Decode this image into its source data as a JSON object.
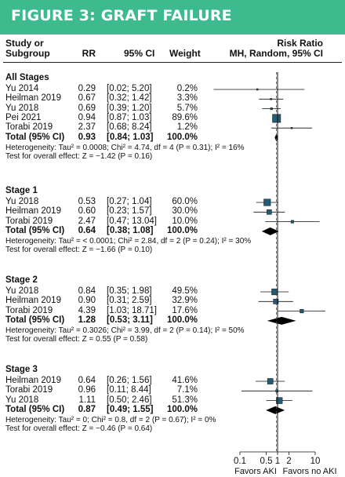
{
  "banner": {
    "title": "FIGURE 3: GRAFT FAILURE"
  },
  "headers": {
    "study_line1": "Study or",
    "study_line2": "Subgroup",
    "rr": "RR",
    "ci": "95% CI",
    "weight": "Weight",
    "effect_line1": "Risk Ratio",
    "effect_line2": "MH, Random, 95% CI"
  },
  "colors": {
    "banner": "#3dbb8f",
    "box": "#1f5c75",
    "line": "#111111"
  },
  "chart_data": {
    "type": "forest",
    "x_scale": "log",
    "xlim": [
      0.05,
      20
    ],
    "x_ticks": [
      0.1,
      0.5,
      1,
      2,
      10
    ],
    "x_tick_labels": [
      "0.1",
      "0.5",
      "1",
      "2",
      "10"
    ],
    "reference_line": 1,
    "favors_left": "Favors AKI",
    "favors_right": "Favors no AKI",
    "groups": [
      {
        "name": "All Stages",
        "studies": [
          {
            "study": "Yu 2014",
            "rr": 0.29,
            "rr_text": "0.29",
            "ci_low": 0.02,
            "ci_high": 5.2,
            "ci_text": "[0.02; 5.20]",
            "weight": 0.2,
            "weight_text": "0.2%"
          },
          {
            "study": "Heilman 2019",
            "rr": 0.67,
            "rr_text": "0.67",
            "ci_low": 0.32,
            "ci_high": 1.42,
            "ci_text": "[0.32; 1.42]",
            "weight": 3.3,
            "weight_text": "3.3%"
          },
          {
            "study": "Yu 2018",
            "rr": 0.69,
            "rr_text": "0.69",
            "ci_low": 0.39,
            "ci_high": 1.2,
            "ci_text": "[0.39; 1.20]",
            "weight": 5.7,
            "weight_text": "5.7%"
          },
          {
            "study": "Pei 2021",
            "rr": 0.94,
            "rr_text": "0.94",
            "ci_low": 0.87,
            "ci_high": 1.03,
            "ci_text": "[0.87; 1.03]",
            "weight": 89.6,
            "weight_text": "89.6%"
          },
          {
            "study": "Torabi 2019",
            "rr": 2.37,
            "rr_text": "2.37",
            "ci_low": 0.68,
            "ci_high": 8.24,
            "ci_text": "[0.68; 8.24]",
            "weight": 1.2,
            "weight_text": "1.2%"
          }
        ],
        "total": {
          "label": "Total (95% CI)",
          "rr": 0.93,
          "rr_text": "0.93",
          "ci_low": 0.84,
          "ci_high": 1.03,
          "ci_text": "[0.84; 1.03]",
          "weight_text": "100.0%"
        },
        "heterogeneity": "Heterogeneity: Tau² = 0.0008; Chi² = 4.74, df = 4 (P = 0.31); I² = 16%",
        "overall_test": "Test for overall effect: Z = −1.42 (P = 0.16)"
      },
      {
        "name": "Stage 1",
        "studies": [
          {
            "study": "Yu 2018",
            "rr": 0.53,
            "rr_text": "0.53",
            "ci_low": 0.27,
            "ci_high": 1.04,
            "ci_text": "[0.27; 1.04]",
            "weight": 60.0,
            "weight_text": "60.0%"
          },
          {
            "study": "Heilman 2019",
            "rr": 0.6,
            "rr_text": "0.60",
            "ci_low": 0.23,
            "ci_high": 1.57,
            "ci_text": "[0.23; 1.57]",
            "weight": 30.0,
            "weight_text": "30.0%"
          },
          {
            "study": "Torabi 2019",
            "rr": 2.47,
            "rr_text": "2.47",
            "ci_low": 0.47,
            "ci_high": 13.04,
            "ci_text": "[0.47; 13.04]",
            "weight": 10.0,
            "weight_text": "10.0%"
          }
        ],
        "total": {
          "label": "Total (95% CI)",
          "rr": 0.64,
          "rr_text": "0.64",
          "ci_low": 0.38,
          "ci_high": 1.08,
          "ci_text": "[0.38; 1.08]",
          "weight_text": "100.0%"
        },
        "heterogeneity": "Heterogeneity: Tau² = < 0.0001; Chi² = 2.84, df = 2 (P = 0.24); I² = 30%",
        "overall_test": "Test for overall effect: Z = −1.66 (P = 0.10)"
      },
      {
        "name": "Stage 2",
        "studies": [
          {
            "study": "Yu 2018",
            "rr": 0.84,
            "rr_text": "0.84",
            "ci_low": 0.35,
            "ci_high": 1.98,
            "ci_text": "[0.35; 1.98]",
            "weight": 49.5,
            "weight_text": "49.5%"
          },
          {
            "study": "Heilman 2019",
            "rr": 0.9,
            "rr_text": "0.90",
            "ci_low": 0.31,
            "ci_high": 2.59,
            "ci_text": "[0.31; 2.59]",
            "weight": 32.9,
            "weight_text": "32.9%"
          },
          {
            "study": "Torabi 2019",
            "rr": 4.39,
            "rr_text": "4.39",
            "ci_low": 1.03,
            "ci_high": 18.71,
            "ci_text": "[1.03; 18.71]",
            "weight": 17.6,
            "weight_text": "17.6%"
          }
        ],
        "total": {
          "label": "Total (95% CI)",
          "rr": 1.28,
          "rr_text": "1.28",
          "ci_low": 0.53,
          "ci_high": 3.11,
          "ci_text": "[0.53; 3.11]",
          "weight_text": "100.0%"
        },
        "heterogeneity": "Heterogeneity: Tau² = 0.3026; Chi² = 3.99, df = 2 (P = 0.14); I² = 50%",
        "overall_test": "Test for overall effect: Z = 0.55 (P = 0.58)"
      },
      {
        "name": "Stage 3",
        "studies": [
          {
            "study": "Heilman 2019",
            "rr": 0.64,
            "rr_text": "0.64",
            "ci_low": 0.26,
            "ci_high": 1.56,
            "ci_text": "[0.26; 1.56]",
            "weight": 41.6,
            "weight_text": "41.6%"
          },
          {
            "study": "Torabi 2019",
            "rr": 0.96,
            "rr_text": "0.96",
            "ci_low": 0.11,
            "ci_high": 8.44,
            "ci_text": "[0.11; 8.44]",
            "weight": 7.1,
            "weight_text": "7.1%"
          },
          {
            "study": "Yu 2018",
            "rr": 1.11,
            "rr_text": "1.11",
            "ci_low": 0.5,
            "ci_high": 2.46,
            "ci_text": "[0.50; 2.46]",
            "weight": 51.3,
            "weight_text": "51.3%"
          }
        ],
        "total": {
          "label": "Total (95% CI)",
          "rr": 0.87,
          "rr_text": "0.87",
          "ci_low": 0.49,
          "ci_high": 1.55,
          "ci_text": "[0.49; 1.55]",
          "weight_text": "100.0%"
        },
        "heterogeneity": "Heterogeneity: Tau² = 0; Chi² = 0.8, df = 2 (P = 0.67); I² = 0%",
        "overall_test": "Test for overall effect: Z = −0.46 (P = 0.64)"
      }
    ]
  }
}
